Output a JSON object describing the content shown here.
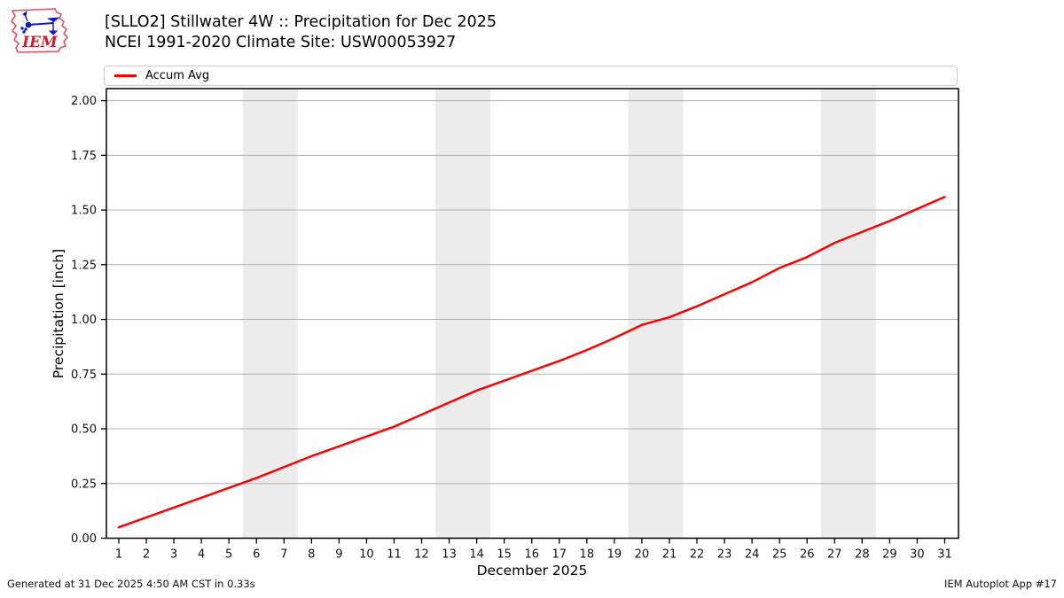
{
  "header": {
    "title_line1": "[SLLO2] Stillwater 4W :: Precipitation for Dec 2025",
    "title_line2": "NCEI 1991-2020 Climate Site: USW00053927",
    "logo_text": "IEM"
  },
  "legend": {
    "items": [
      {
        "label": "Accum Avg",
        "color": "#ff0000"
      }
    ]
  },
  "footer": {
    "left": "Generated at 31 Dec 2025 4:50 AM CST in 0.33s",
    "right": "IEM Autoplot App #17"
  },
  "chart_data": {
    "type": "line",
    "title": "[SLLO2] Stillwater 4W :: Precipitation for Dec 2025",
    "subtitle": "NCEI 1991-2020 Climate Site: USW00053927",
    "xlabel": "December 2025",
    "ylabel": "Precipitation [inch]",
    "xlim": [
      0.55,
      31.5
    ],
    "ylim": [
      0,
      2.055
    ],
    "x_ticks": [
      1,
      2,
      3,
      4,
      5,
      6,
      7,
      8,
      9,
      10,
      11,
      12,
      13,
      14,
      15,
      16,
      17,
      18,
      19,
      20,
      21,
      22,
      23,
      24,
      25,
      26,
      27,
      28,
      29,
      30,
      31
    ],
    "y_ticks": [
      0.0,
      0.25,
      0.5,
      0.75,
      1.0,
      1.25,
      1.5,
      1.75,
      2.0
    ],
    "grid": "horizontal",
    "grid_color": "#b0b0b0",
    "legend_position": "top",
    "weekend_bands": [
      [
        5.5,
        7.5
      ],
      [
        12.5,
        14.5
      ],
      [
        19.5,
        21.5
      ],
      [
        26.5,
        28.5
      ]
    ],
    "band_color": "#ececec",
    "series": [
      {
        "name": "Accum Avg",
        "color": "#ff0000",
        "x": [
          1,
          2,
          3,
          4,
          5,
          6,
          7,
          8,
          9,
          10,
          11,
          12,
          13,
          14,
          15,
          16,
          17,
          18,
          19,
          20,
          21,
          22,
          23,
          24,
          25,
          26,
          27,
          28,
          29,
          30,
          31
        ],
        "values": [
          0.05,
          0.095,
          0.14,
          0.185,
          0.23,
          0.275,
          0.325,
          0.375,
          0.42,
          0.465,
          0.51,
          0.565,
          0.62,
          0.675,
          0.72,
          0.765,
          0.81,
          0.86,
          0.915,
          0.975,
          1.01,
          1.06,
          1.115,
          1.17,
          1.235,
          1.285,
          1.35,
          1.4,
          1.45,
          1.505,
          1.56
        ]
      }
    ]
  }
}
